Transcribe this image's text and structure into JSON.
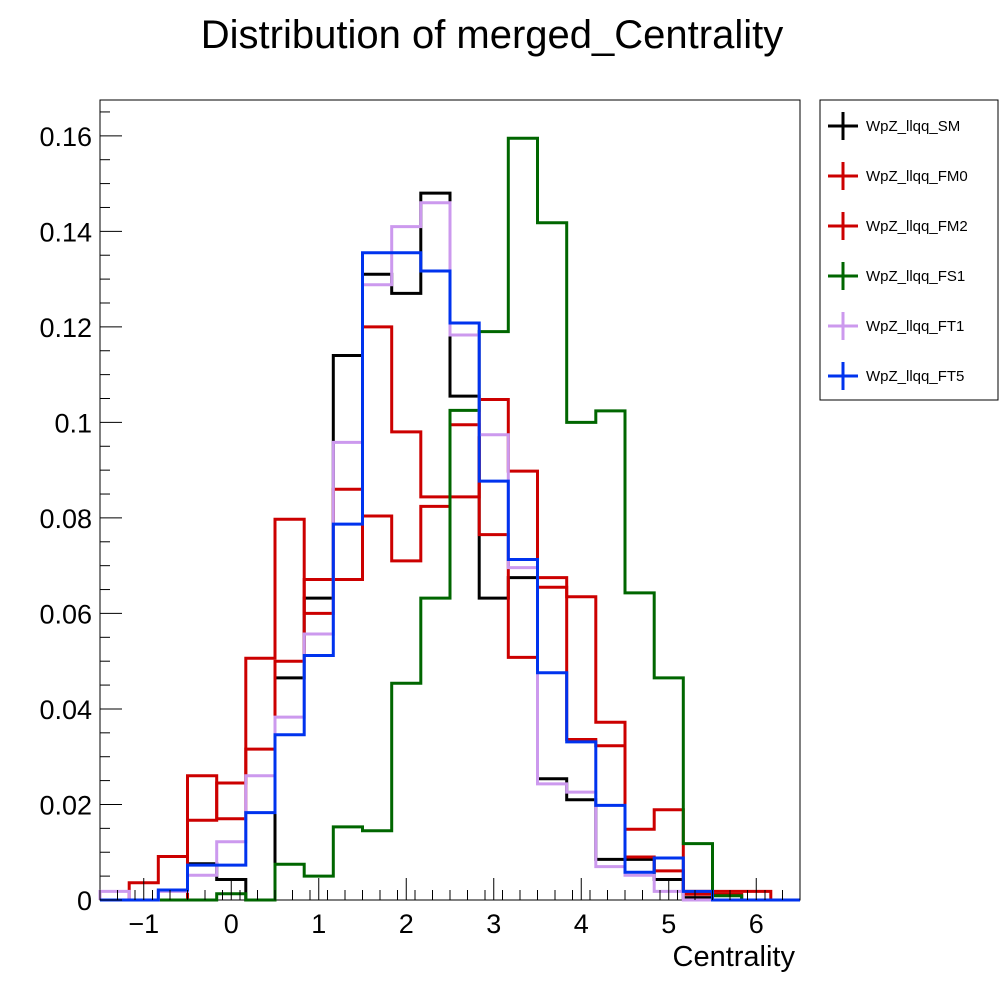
{
  "chart_data": {
    "type": "line",
    "step": true,
    "title": "Distribution of merged_Centrality",
    "xlabel": "Centrality",
    "ylabel": "",
    "xlim": [
      -1.5,
      6.5
    ],
    "ylim": [
      0,
      0.1675
    ],
    "bin_edges": [
      -1.5,
      -1.1667,
      -0.8333,
      -0.5,
      -0.1667,
      0.1667,
      0.5,
      0.8333,
      1.1667,
      1.5,
      1.8333,
      2.1667,
      2.5,
      2.8333,
      3.1667,
      3.5,
      3.8333,
      4.1667,
      4.5,
      4.8333,
      5.1667,
      5.5,
      5.8333,
      6.1667,
      6.5
    ],
    "x_ticks": [
      {
        "value": -1,
        "label": "−1"
      },
      {
        "value": 0,
        "label": "0"
      },
      {
        "value": 1,
        "label": "1"
      },
      {
        "value": 2,
        "label": "2"
      },
      {
        "value": 3,
        "label": "3"
      },
      {
        "value": 4,
        "label": "4"
      },
      {
        "value": 5,
        "label": "5"
      },
      {
        "value": 6,
        "label": "6"
      }
    ],
    "y_ticks": [
      {
        "value": 0,
        "label": "0"
      },
      {
        "value": 0.02,
        "label": "0.02"
      },
      {
        "value": 0.04,
        "label": "0.04"
      },
      {
        "value": 0.06,
        "label": "0.06"
      },
      {
        "value": 0.08,
        "label": "0.08"
      },
      {
        "value": 0.1,
        "label": "0.1"
      },
      {
        "value": 0.12,
        "label": "0.12"
      },
      {
        "value": 0.14,
        "label": "0.14"
      },
      {
        "value": 0.16,
        "label": "0.16"
      }
    ],
    "legend_position": "outside-top-right",
    "grid": false,
    "series": [
      {
        "name": "WpZ_llqq_SM",
        "color": "#000000",
        "values": [
          0,
          0,
          0,
          0.0076,
          0.0043,
          0,
          0.0465,
          0.0632,
          0.114,
          0.131,
          0.127,
          0.148,
          0.1055,
          0.0632,
          0.0675,
          0.0254,
          0.021,
          0.0085,
          0.0085,
          0.0043,
          0.0005,
          0,
          0,
          0
        ]
      },
      {
        "name": "WpZ_llqq_FM0",
        "color": "#cc0000",
        "values": [
          0,
          0.0036,
          0.0091,
          0.026,
          0.017,
          0.0506,
          0.0797,
          0.06,
          0.086,
          0.12,
          0.098,
          0.0844,
          0.0844,
          0.1048,
          0.0898,
          0.0655,
          0.0336,
          0.0323,
          0.0148,
          0.0189,
          0.0018,
          0.0018,
          0.0018,
          0
        ]
      },
      {
        "name": "WpZ_llqq_FM2",
        "color": "#cc0000",
        "values": [
          0,
          0,
          0,
          0.0167,
          0.0245,
          0.0316,
          0.05,
          0.0671,
          0.0671,
          0.0804,
          0.071,
          0.0824,
          0.0995,
          0.0765,
          0.0508,
          0.0675,
          0.0635,
          0.0372,
          0.009,
          0.0061,
          0.0012,
          0.0012,
          0,
          0
        ]
      },
      {
        "name": "WpZ_llqq_FS1",
        "color": "#006600",
        "values": [
          0,
          0,
          0,
          0,
          0.0013,
          0,
          0.0075,
          0.005,
          0.0153,
          0.0145,
          0.0454,
          0.0632,
          0.1025,
          0.119,
          0.1595,
          0.1418,
          0.1,
          0.1024,
          0.0643,
          0.0465,
          0.0118,
          0.0009,
          0,
          0
        ]
      },
      {
        "name": "WpZ_llqq_FT1",
        "color": "#cc99ee",
        "values": [
          0.0018,
          0,
          0.0018,
          0.0052,
          0.0122,
          0.026,
          0.0383,
          0.0557,
          0.0958,
          0.1288,
          0.141,
          0.146,
          0.1183,
          0.0974,
          0.0696,
          0.0243,
          0.0226,
          0.007,
          0.0052,
          0.0018,
          0,
          0,
          0,
          0
        ]
      },
      {
        "name": "WpZ_llqq_FT5",
        "color": "#0033ee",
        "values": [
          0,
          0,
          0.0021,
          0.0073,
          0.0073,
          0.0183,
          0.0346,
          0.0512,
          0.0787,
          0.1355,
          0.1355,
          0.1317,
          0.1208,
          0.0877,
          0.0713,
          0.0476,
          0.0331,
          0.0198,
          0.0058,
          0.0088,
          0.0018,
          0,
          0,
          0
        ]
      }
    ]
  }
}
